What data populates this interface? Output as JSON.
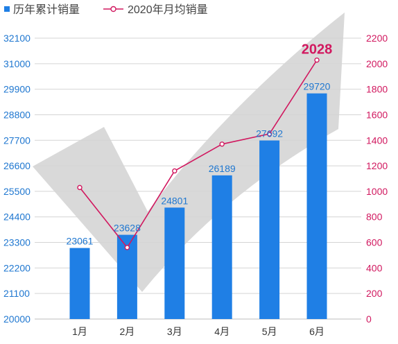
{
  "colors": {
    "bar": "#1f7fe5",
    "bar_label": "#1f77d0",
    "left_axis_label": "#1f77d0",
    "line": "#d1185f",
    "right_axis_label": "#d1185f",
    "category_label": "#333333",
    "legend_text": "#444444",
    "grid": "#d4d4d4",
    "axis_line": "#bdbdbd",
    "background_check": "#d9d9d9"
  },
  "background_graphic": "checkmark-icon",
  "chart_data": {
    "type": "bar",
    "categories": [
      "1月",
      "2月",
      "3月",
      "4月",
      "5月",
      "6月"
    ],
    "series": [
      {
        "name": "历年累计销量",
        "type": "bar",
        "axis": "left",
        "values": [
          23061,
          23628,
          24801,
          26189,
          27692,
          29720
        ],
        "data_labels": true
      },
      {
        "name": "2020年月均销量",
        "type": "line",
        "axis": "right",
        "values": [
          1030,
          560,
          1160,
          1370,
          1450,
          2028
        ],
        "labeled_points": [
          "6月"
        ]
      }
    ],
    "y_left": {
      "min": 20000,
      "max": 32100,
      "ticks": [
        20000,
        21100,
        22200,
        23300,
        24400,
        25500,
        26600,
        27700,
        28800,
        29900,
        31000,
        32100
      ]
    },
    "y_right": {
      "min": 0,
      "max": 2200,
      "ticks": [
        0,
        200,
        400,
        600,
        800,
        1000,
        1200,
        1400,
        1600,
        1800,
        2000,
        2200
      ]
    },
    "grid": true,
    "legend": "top-left"
  }
}
